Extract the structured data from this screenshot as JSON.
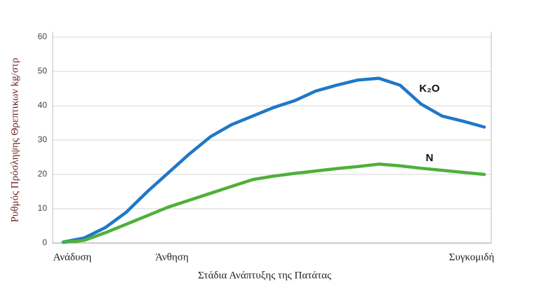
{
  "chart_data": {
    "type": "line",
    "x_label": "Στάδια Ανάπτυξης της Πατάτας",
    "y_label": "Ρυθμός Πρόσληψης Θρεπτικων kg/στρ",
    "categories": [
      "Ανάδυση",
      null,
      null,
      null,
      null,
      "Άνθηση",
      null,
      null,
      null,
      null,
      null,
      null,
      null,
      null,
      null,
      null,
      null,
      null,
      null,
      null,
      "Συγκομιδή"
    ],
    "series": [
      {
        "name": "K₂O",
        "color": "#1f78c8",
        "values": [
          0.3,
          1.5,
          4.5,
          9,
          15,
          20.5,
          26,
          31,
          34.5,
          37,
          39.5,
          41.5,
          44.3,
          46,
          47.5,
          48,
          46,
          40.5,
          37,
          35.5,
          33.8
        ]
      },
      {
        "name": "N",
        "color": "#4fb038",
        "values": [
          0.2,
          0.8,
          3,
          5.5,
          8,
          10.5,
          12.5,
          14.5,
          16.5,
          18.5,
          19.5,
          20.3,
          21,
          21.7,
          22.3,
          23,
          22.5,
          21.8,
          21.2,
          20.6,
          20
        ]
      }
    ],
    "ylim": [
      0,
      60
    ],
    "yticks": [
      0,
      10,
      20,
      30,
      40,
      50,
      60
    ],
    "grid": true
  }
}
